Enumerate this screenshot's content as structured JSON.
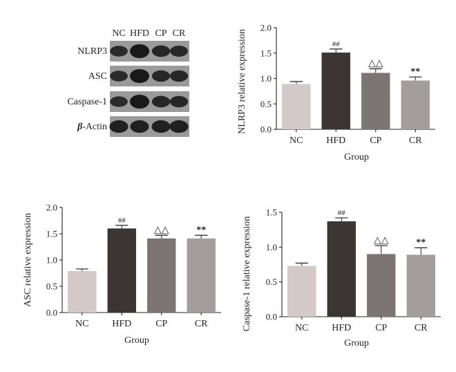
{
  "blot": {
    "lanes": [
      "NC",
      "HFD",
      "CP",
      "CR"
    ],
    "rows": [
      {
        "label": "NLRP3",
        "intensity": [
          0.62,
          1.0,
          0.72,
          0.66
        ]
      },
      {
        "label": "ASC",
        "intensity": [
          0.62,
          1.0,
          0.7,
          0.7
        ]
      },
      {
        "label": "Caspase-1",
        "intensity": [
          0.6,
          1.0,
          0.72,
          0.7
        ]
      },
      {
        "label_greek": "β",
        "label_suffix": "-Actin",
        "intensity": [
          0.85,
          0.85,
          0.85,
          0.85
        ]
      }
    ]
  },
  "chart_data": [
    {
      "type": "bar",
      "categories": [
        "NC",
        "HFD",
        "CP",
        "CR"
      ],
      "values": [
        0.89,
        1.51,
        1.11,
        0.96
      ],
      "errors": [
        0.05,
        0.07,
        0.08,
        0.07
      ],
      "annotations": [
        "",
        "##",
        "△△",
        "**"
      ],
      "bar_colors": [
        "#d2c9c8",
        "#3b3534",
        "#7d7574",
        "#a49d9d"
      ],
      "xlabel": "Group",
      "ylabel": "NLRP3 relative expression",
      "ylim": [
        0,
        2.0
      ],
      "yticks": [
        "0.0",
        "0.5",
        "1.0",
        "1.5",
        "2.0"
      ]
    },
    {
      "type": "bar",
      "categories": [
        "NC",
        "HFD",
        "CP",
        "CR"
      ],
      "values": [
        0.79,
        1.6,
        1.41,
        1.41
      ],
      "errors": [
        0.04,
        0.06,
        0.06,
        0.06
      ],
      "annotations": [
        "",
        "##",
        "△△",
        "**"
      ],
      "bar_colors": [
        "#d2c9c8",
        "#3b3534",
        "#7d7574",
        "#a49d9d"
      ],
      "xlabel": "Group",
      "ylabel": "ASC relative expression",
      "ylim": [
        0,
        2.0
      ],
      "yticks": [
        "0.0",
        "0.5",
        "1.0",
        "1.5",
        "2.0"
      ]
    },
    {
      "type": "bar",
      "categories": [
        "NC",
        "HFD",
        "CP",
        "CR"
      ],
      "values": [
        0.73,
        1.37,
        0.9,
        0.89
      ],
      "errors": [
        0.04,
        0.05,
        0.12,
        0.1
      ],
      "annotations": [
        "",
        "##",
        "△△",
        "**"
      ],
      "bar_colors": [
        "#d2c9c8",
        "#3b3534",
        "#7d7574",
        "#a49d9d"
      ],
      "xlabel": "Group",
      "ylabel": "Caspase-1 relative expression",
      "ylim": [
        0,
        1.5
      ],
      "yticks": [
        "0.0",
        "0.5",
        "1.0",
        "1.5"
      ]
    }
  ]
}
